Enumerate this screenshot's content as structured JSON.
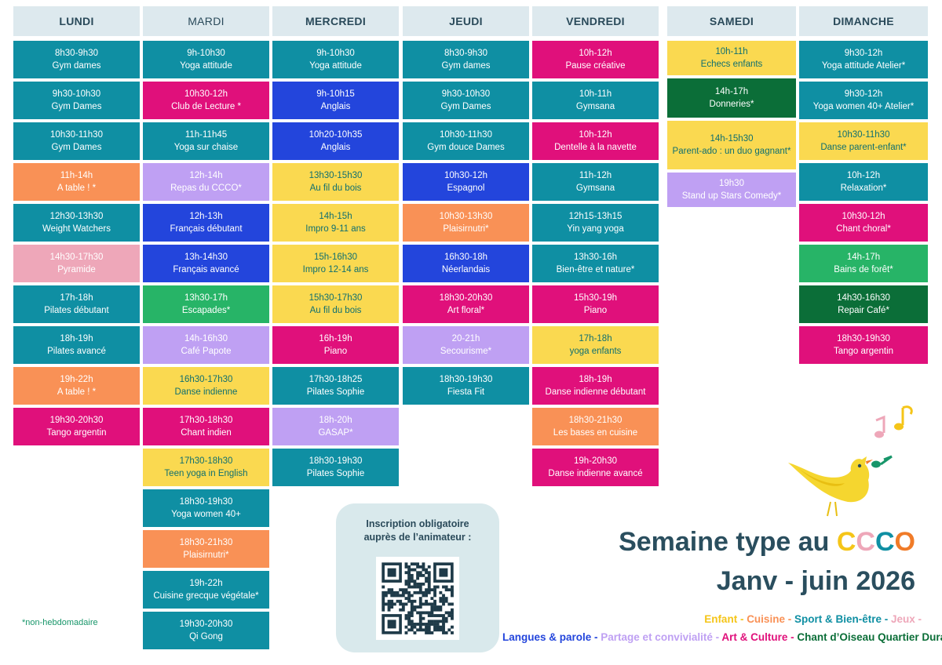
{
  "colors": {
    "sport": "#0f8fa3",
    "langues": "#2345dc",
    "art": "#e0107b",
    "enfant": "#fad950",
    "cuisine": "#f99156",
    "jeux": "#eea7b9",
    "partage": "#bfa0f3",
    "chant_oiseau_light": "#27b467",
    "chant_oiseau_dark": "#0b6e38",
    "header_bg": "#dde9ee"
  },
  "days": [
    {
      "name": "LUNDI",
      "events": [
        {
          "time": "8h30-9h30",
          "title": "Gym dames",
          "cat": "sport"
        },
        {
          "time": "9h30-10h30",
          "title": "Gym Dames",
          "cat": "sport"
        },
        {
          "time": "10h30-11h30",
          "title": "Gym Dames",
          "cat": "sport"
        },
        {
          "time": "11h-14h",
          "title": "A table ! *",
          "cat": "cuisine"
        },
        {
          "time": "12h30-13h30",
          "title": "Weight Watchers",
          "cat": "sport"
        },
        {
          "time": "14h30-17h30",
          "title": "Pyramide",
          "cat": "jeux"
        },
        {
          "time": "17h-18h",
          "title": "Pilates débutant",
          "cat": "sport"
        },
        {
          "time": "18h-19h",
          "title": "Pilates avancé",
          "cat": "sport"
        },
        {
          "time": "19h-22h",
          "title": "A table ! *",
          "cat": "cuisine"
        },
        {
          "time": "19h30-20h30",
          "title": "Tango argentin",
          "cat": "art"
        }
      ]
    },
    {
      "name": "MARDI",
      "events": [
        {
          "time": "9h-10h30",
          "title": "Yoga attitude",
          "cat": "sport"
        },
        {
          "time": "10h30-12h",
          "title": "Club de Lecture *",
          "cat": "art"
        },
        {
          "time": "11h-11h45",
          "title": "Yoga sur chaise",
          "cat": "sport"
        },
        {
          "time": "12h-14h",
          "title": "Repas du CCCO*",
          "cat": "partage"
        },
        {
          "time": "12h-13h",
          "title": "Français débutant",
          "cat": "langues"
        },
        {
          "time": "13h-14h30",
          "title": "Français avancé",
          "cat": "langues"
        },
        {
          "time": "13h30-17h",
          "title": "Escapades*",
          "cat": "chant_oiseau_light"
        },
        {
          "time": "14h-16h30",
          "title": "Café Papote",
          "cat": "partage"
        },
        {
          "time": "16h30-17h30",
          "title": "Danse indienne",
          "cat": "enfant"
        },
        {
          "time": "17h30-18h30",
          "title": "Chant indien",
          "cat": "art"
        },
        {
          "time": "17h30-18h30",
          "title": "Teen yoga in English",
          "cat": "enfant"
        },
        {
          "time": "18h30-19h30",
          "title": "Yoga women 40+",
          "cat": "sport"
        },
        {
          "time": "18h30-21h30",
          "title": "Plaisirnutri*",
          "cat": "cuisine"
        },
        {
          "time": "19h-22h",
          "title": "Cuisine grecque végétale*",
          "cat": "sport"
        },
        {
          "time": "19h30-20h30",
          "title": "Qi Gong",
          "cat": "sport"
        }
      ]
    },
    {
      "name": "MERCREDI",
      "events": [
        {
          "time": "9h-10h30",
          "title": "Yoga attitude",
          "cat": "sport"
        },
        {
          "time": "9h-10h15",
          "title": "Anglais",
          "cat": "langues"
        },
        {
          "time": "10h20-10h35",
          "title": "Anglais",
          "cat": "langues"
        },
        {
          "time": "13h30-15h30",
          "title": "Au fil du bois",
          "cat": "enfant"
        },
        {
          "time": "14h-15h",
          "title": "Impro 9-11 ans",
          "cat": "enfant"
        },
        {
          "time": "15h-16h30",
          "title": "Impro 12-14 ans",
          "cat": "enfant"
        },
        {
          "time": "15h30-17h30",
          "title": "Au fil du bois",
          "cat": "enfant"
        },
        {
          "time": "16h-19h",
          "title": "Piano",
          "cat": "art"
        },
        {
          "time": "17h30-18h25",
          "title": "Pilates Sophie",
          "cat": "sport"
        },
        {
          "time": "18h-20h",
          "title": "GASAP*",
          "cat": "partage"
        },
        {
          "time": "18h30-19h30",
          "title": "Pilates Sophie",
          "cat": "sport"
        }
      ]
    },
    {
      "name": "JEUDI",
      "events": [
        {
          "time": "8h30-9h30",
          "title": "Gym dames",
          "cat": "sport"
        },
        {
          "time": "9h30-10h30",
          "title": "Gym Dames",
          "cat": "sport"
        },
        {
          "time": "10h30-11h30",
          "title": "Gym douce Dames",
          "cat": "sport"
        },
        {
          "time": "10h30-12h",
          "title": "Espagnol",
          "cat": "langues"
        },
        {
          "time": "10h30-13h30",
          "title": "Plaisirnutri*",
          "cat": "cuisine"
        },
        {
          "time": "16h30-18h",
          "title": "Néerlandais",
          "cat": "langues"
        },
        {
          "time": "18h30-20h30",
          "title": "Art floral*",
          "cat": "art"
        },
        {
          "time": "20-21h",
          "title": "Secourisme*",
          "cat": "partage"
        },
        {
          "time": "18h30-19h30",
          "title": "Fiesta Fit",
          "cat": "sport"
        }
      ]
    },
    {
      "name": "VENDREDI",
      "events": [
        {
          "time": "10h-12h",
          "title": "Pause créative",
          "cat": "art"
        },
        {
          "time": "10h-11h",
          "title": "Gymsana",
          "cat": "sport"
        },
        {
          "time": "10h-12h",
          "title": "Dentelle à la navette",
          "cat": "art"
        },
        {
          "time": "11h-12h",
          "title": "Gymsana",
          "cat": "sport"
        },
        {
          "time": "12h15-13h15",
          "title": "Yin yang yoga",
          "cat": "sport"
        },
        {
          "time": "13h30-16h",
          "title": "Bien-être et nature*",
          "cat": "sport"
        },
        {
          "time": "15h30-19h",
          "title": "Piano",
          "cat": "art"
        },
        {
          "time": "17h-18h",
          "title": "yoga enfants",
          "cat": "enfant"
        },
        {
          "time": "18h-19h",
          "title": "Danse indienne débutant",
          "cat": "art"
        },
        {
          "time": "18h30-21h30",
          "title": "Les bases en cuisine",
          "cat": "cuisine"
        },
        {
          "time": "19h-20h30",
          "title": "Danse indienne avancé",
          "cat": "art"
        }
      ]
    },
    {
      "name": "SAMEDI",
      "events": [
        {
          "time": "10h-11h",
          "title": "Echecs enfants",
          "cat": "enfant"
        },
        {
          "time": "14h-17h",
          "title": "Donneries*",
          "cat": "chant_oiseau_dark"
        },
        {
          "time": "14h-15h30",
          "title": "Parent-ado : un duo gagnant*",
          "cat": "enfant"
        },
        {
          "time": "19h30",
          "title": "Stand up Stars Comedy*",
          "cat": "partage"
        }
      ]
    },
    {
      "name": "DIMANCHE",
      "events": [
        {
          "time": "9h30-12h",
          "title": "Yoga attitude Atelier*",
          "cat": "sport"
        },
        {
          "time": "9h30-12h",
          "title": "Yoga women 40+ Atelier*",
          "cat": "sport"
        },
        {
          "time": "10h30-11h30",
          "title": "Danse parent-enfant*",
          "cat": "enfant"
        },
        {
          "time": "10h-12h",
          "title": "Relaxation*",
          "cat": "sport"
        },
        {
          "time": "10h30-12h",
          "title": "Chant choral*",
          "cat": "art"
        },
        {
          "time": "14h-17h",
          "title": "Bains de forêt*",
          "cat": "chant_oiseau_light"
        },
        {
          "time": "14h30-16h30",
          "title": "Repair Café*",
          "cat": "chant_oiseau_dark"
        },
        {
          "time": "18h30-19h30",
          "title": "Tango argentin",
          "cat": "art"
        }
      ]
    }
  ],
  "note": "*non-hebdomadaire",
  "qr": {
    "line1": "Inscription obligatoire",
    "line2": "auprès de l’animateur :"
  },
  "title": {
    "prefix": "Semaine type au ",
    "c1": "C",
    "c2": "C",
    "c3": "C",
    "o": "O",
    "subtitle": "Janv - juin 2026"
  },
  "legend": [
    {
      "text": "Enfant",
      "color": "#f5c518"
    },
    {
      "text": " - ",
      "color": "#f5c518"
    },
    {
      "text": "Cuisine",
      "color": "#f99156"
    },
    {
      "text": " - ",
      "color": "#f99156"
    },
    {
      "text": "Sport & Bien-être",
      "color": "#0f8fa3"
    },
    {
      "text": " - ",
      "color": "#0f8fa3"
    },
    {
      "text": "Jeux",
      "color": "#eea7b9"
    },
    {
      "text": " -",
      "color": "#eea7b9"
    },
    {
      "text": "Langues & parole",
      "color": "#2345dc"
    },
    {
      "text": " - ",
      "color": "#2345dc"
    },
    {
      "text": "Partage et convivialité",
      "color": "#bfa0f3"
    },
    {
      "text": " - ",
      "color": "#bfa0f3"
    },
    {
      "text": "Art & Culture",
      "color": "#e0107b"
    },
    {
      "text": " - ",
      "color": "#e0107b"
    },
    {
      "text": "Chant d’Oiseau Quartier Durable",
      "color": "#0b6e38"
    }
  ]
}
